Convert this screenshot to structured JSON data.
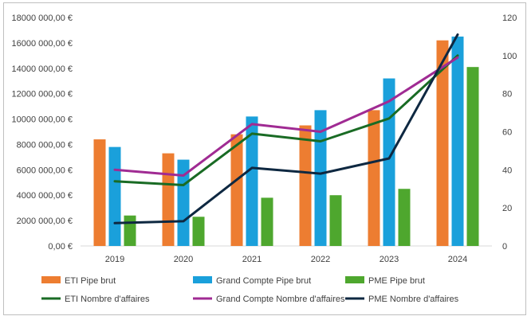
{
  "chart_data": {
    "type": "bar",
    "categories": [
      "2019",
      "2020",
      "2021",
      "2022",
      "2023",
      "2024"
    ],
    "bar_series": [
      {
        "name": "ETI Pipe brut",
        "color": "#ED7D31",
        "values": [
          8400000,
          7300000,
          8800000,
          9500000,
          10700000,
          16200000
        ]
      },
      {
        "name": "Grand Compte Pipe brut",
        "color": "#1AA0DB",
        "values": [
          7800000,
          6800000,
          10200000,
          10700000,
          13200000,
          16500000
        ]
      },
      {
        "name": "PME Pipe brut",
        "color": "#4EA72E",
        "values": [
          2400000,
          2300000,
          3800000,
          4000000,
          4500000,
          14100000
        ]
      }
    ],
    "line_series": [
      {
        "name": "ETI Nombre d'affaires",
        "color": "#196B24",
        "values": [
          34,
          32,
          59,
          55,
          67,
          100
        ]
      },
      {
        "name": "Grand Compte Nombre d'affaires",
        "color": "#A02B93",
        "values": [
          40,
          37,
          64,
          60,
          76,
          99
        ]
      },
      {
        "name": "PME Nombre d'affaires",
        "color": "#0E2841",
        "values": [
          12,
          13,
          41,
          38,
          46,
          111
        ]
      }
    ],
    "y_left": {
      "min": 0,
      "max": 18000000,
      "step": 2000000,
      "tick_labels": [
        "0,00 €",
        "2000 000,00 €",
        "4000 000,00 €",
        "6000 000,00 €",
        "8000 000,00 €",
        "10000 000,00 €",
        "12000 000,00 €",
        "14000 000,00 €",
        "16000 000,00 €",
        "18000 000,00 €"
      ]
    },
    "y_right": {
      "min": 0,
      "max": 120,
      "step": 20,
      "tick_labels": [
        "0",
        "20",
        "40",
        "60",
        "80",
        "100",
        "120"
      ]
    },
    "grid": false,
    "legend_position": "bottom"
  }
}
